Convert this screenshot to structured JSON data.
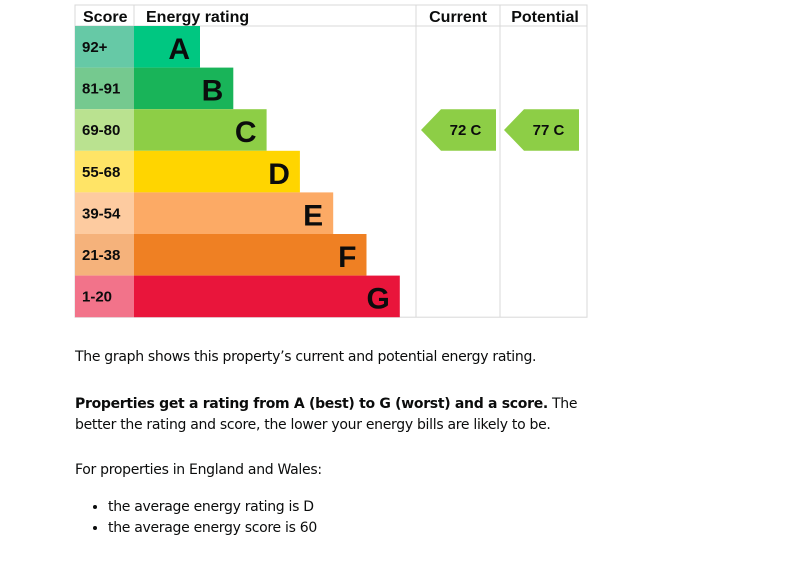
{
  "chart_data": {
    "type": "bar",
    "headers": {
      "score": "Score",
      "rating": "Energy rating",
      "current": "Current",
      "potential": "Potential"
    },
    "bands": [
      {
        "letter": "A",
        "range": "92+",
        "color": "#00c781",
        "light": "#66c9a6"
      },
      {
        "letter": "B",
        "range": "81-91",
        "color": "#19b459",
        "light": "#75c98f"
      },
      {
        "letter": "C",
        "range": "69-80",
        "color": "#8dce46",
        "light": "#bae290"
      },
      {
        "letter": "D",
        "range": "55-68",
        "color": "#ffd500",
        "light": "#ffe466"
      },
      {
        "letter": "E",
        "range": "39-54",
        "color": "#fcaa65",
        "light": "#fdcba0"
      },
      {
        "letter": "F",
        "range": "21-38",
        "color": "#ef8023",
        "light": "#f5b27b"
      },
      {
        "letter": "G",
        "range": "1-20",
        "color": "#e9153b",
        "light": "#f2738a"
      }
    ],
    "current": {
      "score": 72,
      "band": "C",
      "label": "72  C"
    },
    "potential": {
      "score": 77,
      "band": "C",
      "label": "77  C"
    }
  },
  "text": {
    "p1": "The graph shows this property’s current and potential energy rating.",
    "p2_bold": "Properties get a rating from A (best) to G (worst) and a score.",
    "p2_rest": " The better the rating and score, the lower your energy bills are likely to be.",
    "p3": "For properties in England and Wales:",
    "bullets": [
      "the average energy rating is D",
      "the average energy score is 60"
    ]
  }
}
